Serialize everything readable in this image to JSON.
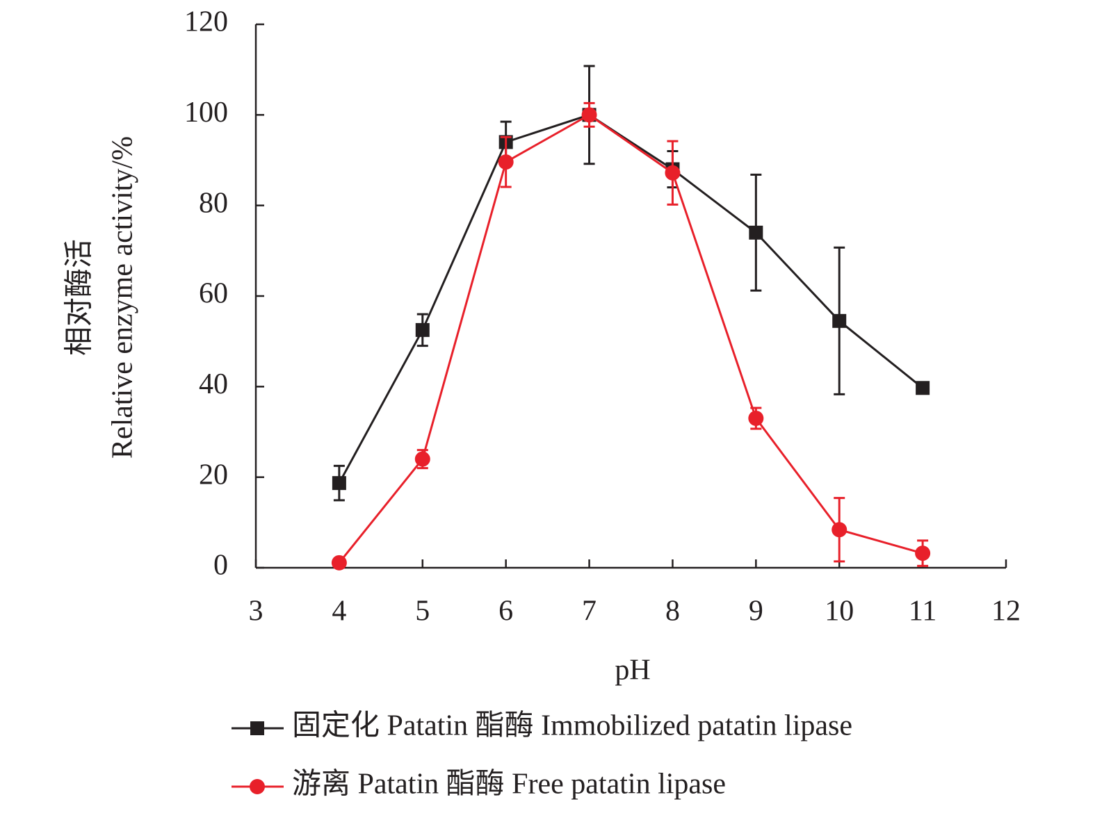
{
  "chart_data": {
    "type": "line",
    "x_label": "pH",
    "y_label_lines": [
      "相对酶活",
      "Relative enzyme activity/%"
    ],
    "x": [
      4,
      5,
      6,
      7,
      8,
      9,
      10,
      11
    ],
    "series": [
      {
        "name": "固定化 Patatin 酯酶 Immobilized patatin lipase",
        "color": "#231f20",
        "marker": "square",
        "values": [
          18.7,
          52.5,
          94,
          100,
          88,
          74,
          54.5,
          39.7
        ],
        "errors": [
          3.8,
          3.5,
          4.5,
          10.8,
          4,
          12.8,
          16.2,
          0.5
        ]
      },
      {
        "name": "游离 Patatin 酯酶 Free patatin lipase",
        "color": "#e8202a",
        "marker": "circle",
        "values": [
          1.1,
          24,
          89.6,
          100,
          87.2,
          33,
          8.4,
          3.2
        ],
        "errors": [
          0,
          2,
          5.5,
          2.6,
          7,
          2.3,
          7,
          2.8
        ]
      }
    ],
    "xlim": [
      3,
      12
    ],
    "xticks": [
      3,
      4,
      5,
      6,
      7,
      8,
      9,
      10,
      11,
      12
    ],
    "ylim": [
      0,
      120
    ],
    "yticks": [
      0,
      20,
      40,
      60,
      80,
      100,
      120
    ]
  }
}
